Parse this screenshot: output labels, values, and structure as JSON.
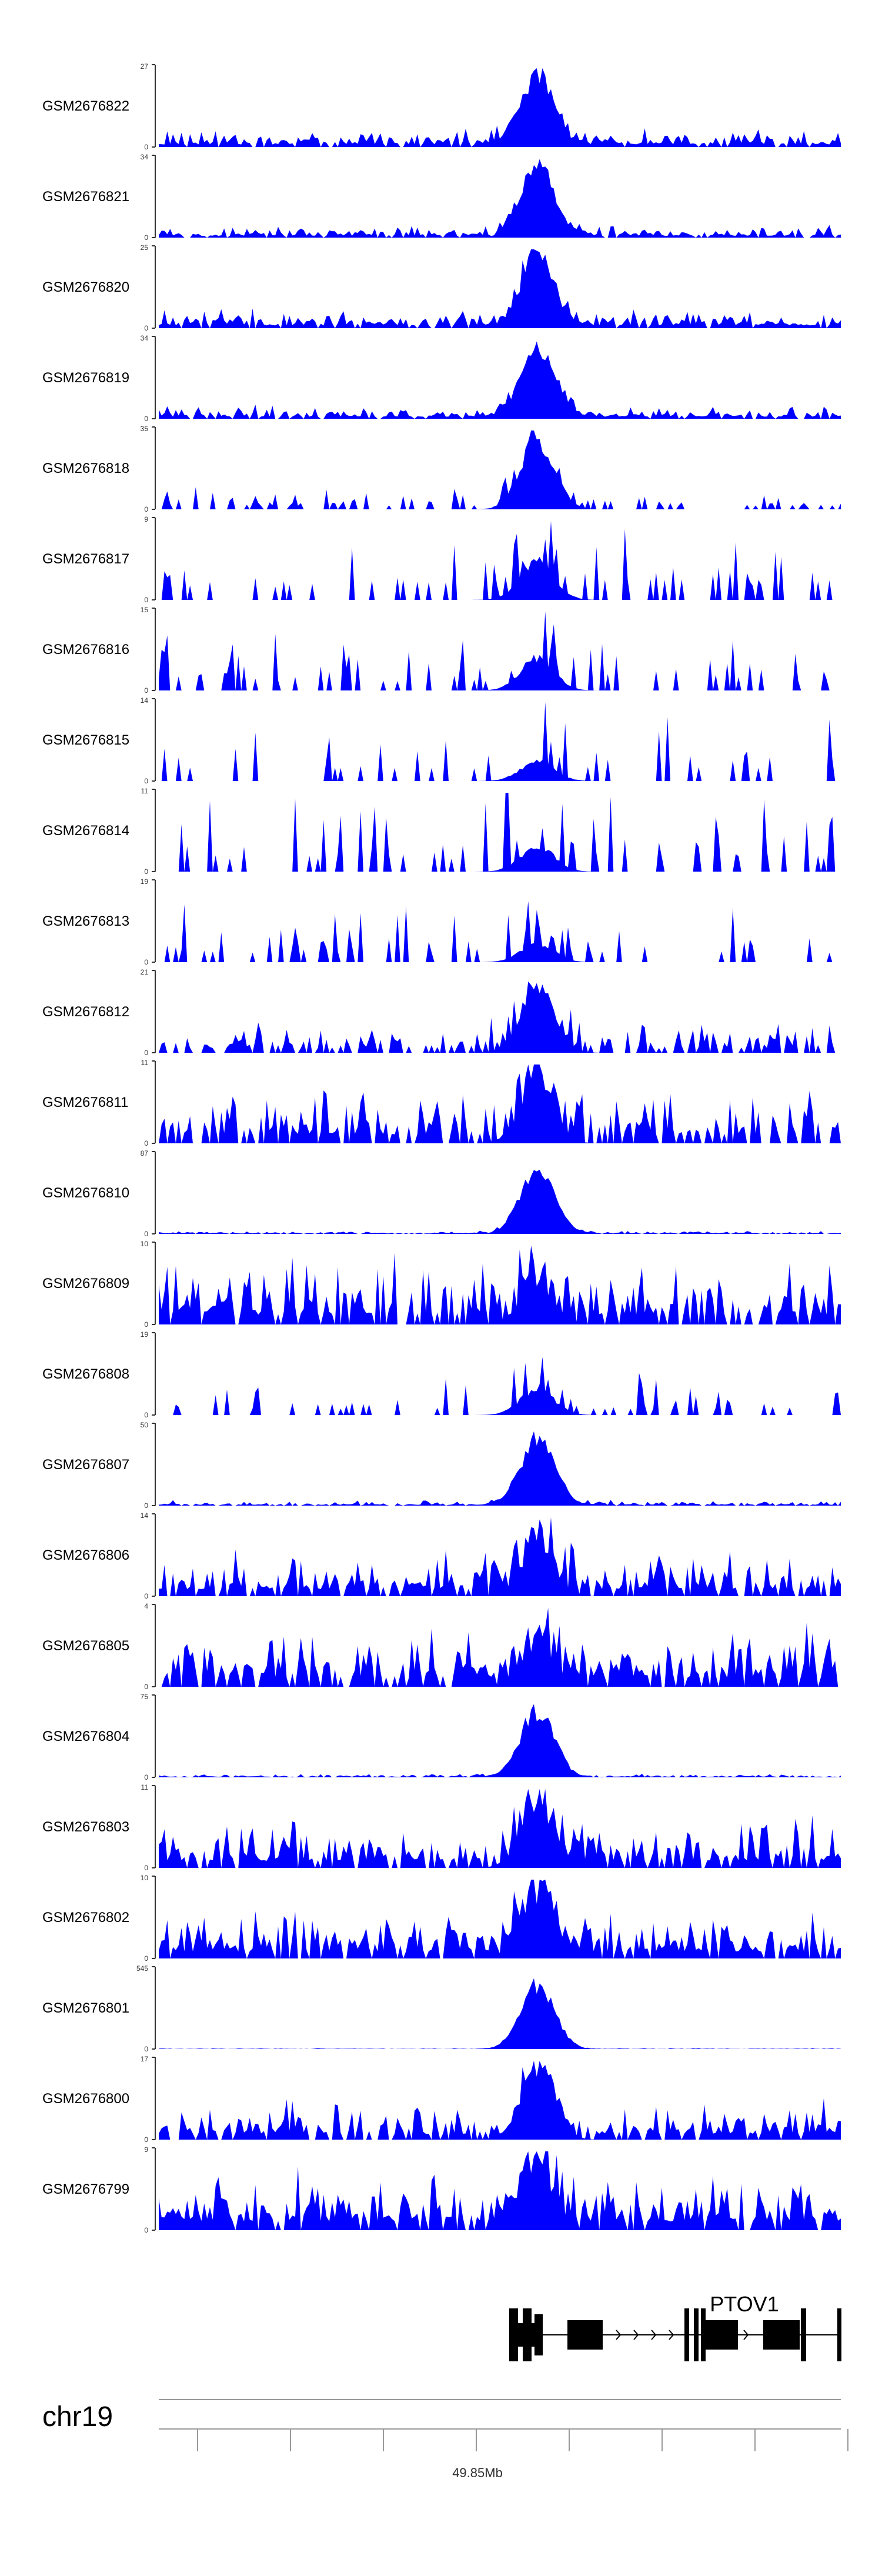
{
  "chart_data": {
    "type": "area",
    "title": "",
    "xlabel": "",
    "ylabel": "",
    "fill_color": "#0000ff",
    "axis_color": "#333333",
    "gene_color": "#000000",
    "tracks": [
      {
        "name": "GSM2676822",
        "ymax": "27",
        "ymin": "0",
        "peak": 27,
        "baseline": 3.5,
        "density": 0.85,
        "seed": 22
      },
      {
        "name": "GSM2676821",
        "ymax": "34",
        "ymin": "0",
        "peak": 34,
        "baseline": 3,
        "density": 0.85,
        "seed": 21
      },
      {
        "name": "GSM2676820",
        "ymax": "25",
        "ymin": "0",
        "peak": 25,
        "baseline": 3.5,
        "density": 0.85,
        "seed": 20
      },
      {
        "name": "GSM2676819",
        "ymax": "34",
        "ymin": "0",
        "peak": 34,
        "baseline": 3.5,
        "density": 0.85,
        "seed": 19
      },
      {
        "name": "GSM2676818",
        "ymax": "35",
        "ymin": "0",
        "peak": 35,
        "baseline": 6,
        "density": 0.35,
        "seed": 18
      },
      {
        "name": "GSM2676817",
        "ymax": "9",
        "ymin": "0",
        "peak": 5,
        "baseline": 6,
        "density": 0.25,
        "seed": 17
      },
      {
        "name": "GSM2676816",
        "ymax": "15",
        "ymin": "0",
        "peak": 7,
        "baseline": 7,
        "density": 0.25,
        "seed": 16
      },
      {
        "name": "GSM2676815",
        "ymax": "14",
        "ymin": "0",
        "peak": 4,
        "baseline": 9,
        "density": 0.12,
        "seed": 15
      },
      {
        "name": "GSM2676814",
        "ymax": "11",
        "ymin": "0",
        "peak": 4,
        "baseline": 7,
        "density": 0.2,
        "seed": 14
      },
      {
        "name": "GSM2676813",
        "ymax": "19",
        "ymin": "0",
        "peak": 5,
        "baseline": 9,
        "density": 0.2,
        "seed": 13
      },
      {
        "name": "GSM2676812",
        "ymax": "21",
        "ymin": "0",
        "peak": 19,
        "baseline": 5,
        "density": 0.5,
        "seed": 12
      },
      {
        "name": "GSM2676811",
        "ymax": "11",
        "ymin": "0",
        "peak": 10,
        "baseline": 5,
        "density": 0.65,
        "seed": 11
      },
      {
        "name": "GSM2676810",
        "ymax": "87",
        "ymin": "0",
        "peak": 80,
        "baseline": 2,
        "density": 0.85,
        "seed": 10
      },
      {
        "name": "GSM2676809",
        "ymax": "10",
        "ymin": "0",
        "peak": 6,
        "baseline": 5,
        "density": 0.75,
        "seed": 9
      },
      {
        "name": "GSM2676808",
        "ymax": "19",
        "ymin": "0",
        "peak": 7,
        "baseline": 6,
        "density": 0.22,
        "seed": 8
      },
      {
        "name": "GSM2676807",
        "ymax": "50",
        "ymin": "0",
        "peak": 48,
        "baseline": 2,
        "density": 0.85,
        "seed": 7
      },
      {
        "name": "GSM2676806",
        "ymax": "14",
        "ymin": "0",
        "peak": 10,
        "baseline": 5,
        "density": 0.8,
        "seed": 6
      },
      {
        "name": "GSM2676805",
        "ymax": "4",
        "ymin": "0",
        "peak": 2.5,
        "baseline": 1.8,
        "density": 0.8,
        "seed": 5
      },
      {
        "name": "GSM2676804",
        "ymax": "75",
        "ymin": "0",
        "peak": 70,
        "baseline": 2,
        "density": 0.85,
        "seed": 4
      },
      {
        "name": "GSM2676803",
        "ymax": "11",
        "ymin": "0",
        "peak": 10,
        "baseline": 4,
        "density": 0.8,
        "seed": 3
      },
      {
        "name": "GSM2676802",
        "ymax": "10",
        "ymin": "0",
        "peak": 9,
        "baseline": 3.5,
        "density": 0.8,
        "seed": 2
      },
      {
        "name": "GSM2676801",
        "ymax": "545",
        "ymin": "0",
        "peak": 500,
        "baseline": 3,
        "density": 0.85,
        "seed": 1
      },
      {
        "name": "GSM2676800",
        "ymax": "17",
        "ymin": "0",
        "peak": 16,
        "baseline": 5,
        "density": 0.8,
        "seed": 99
      },
      {
        "name": "GSM2676799",
        "ymax": "9",
        "ymin": "0",
        "peak": 7,
        "baseline": 4,
        "density": 0.85,
        "seed": 98
      }
    ],
    "gene": {
      "name": "PTOV1"
    },
    "chromosome": "chr19",
    "tick_label": "49.85Mb",
    "tick_count": 8
  }
}
